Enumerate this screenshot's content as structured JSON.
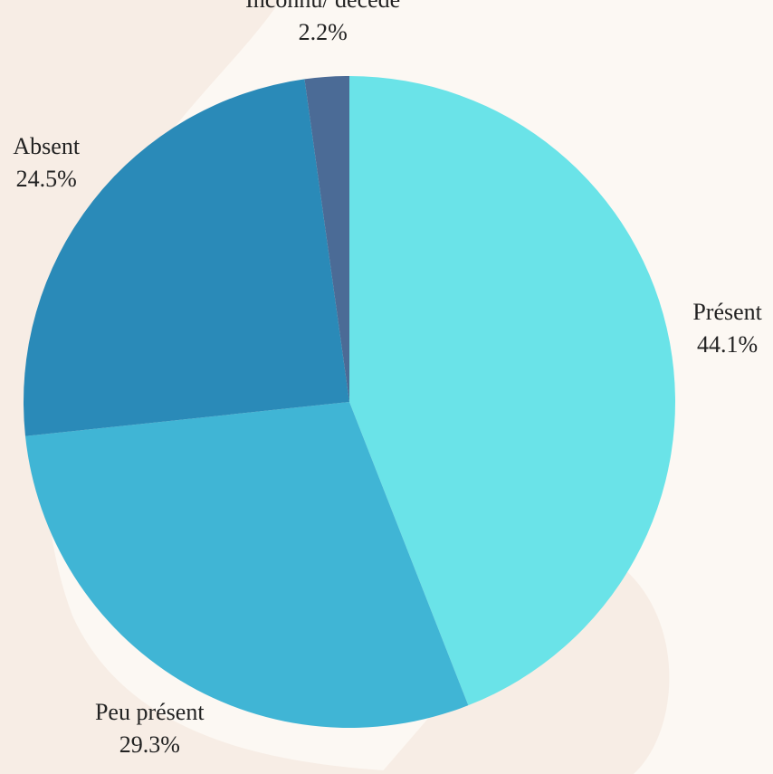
{
  "chart_data": {
    "type": "pie",
    "categories": [
      "Présent",
      "Peu présent",
      "Absent",
      "Inconnu/ décédé"
    ],
    "values": [
      44.1,
      29.3,
      24.5,
      2.2
    ],
    "value_labels": [
      "44.1%",
      "29.3%",
      "24.5%",
      "2.2%"
    ],
    "colors": [
      "#6ae3e8",
      "#40b5d5",
      "#2a8ab8",
      "#4b6b96"
    ]
  }
}
